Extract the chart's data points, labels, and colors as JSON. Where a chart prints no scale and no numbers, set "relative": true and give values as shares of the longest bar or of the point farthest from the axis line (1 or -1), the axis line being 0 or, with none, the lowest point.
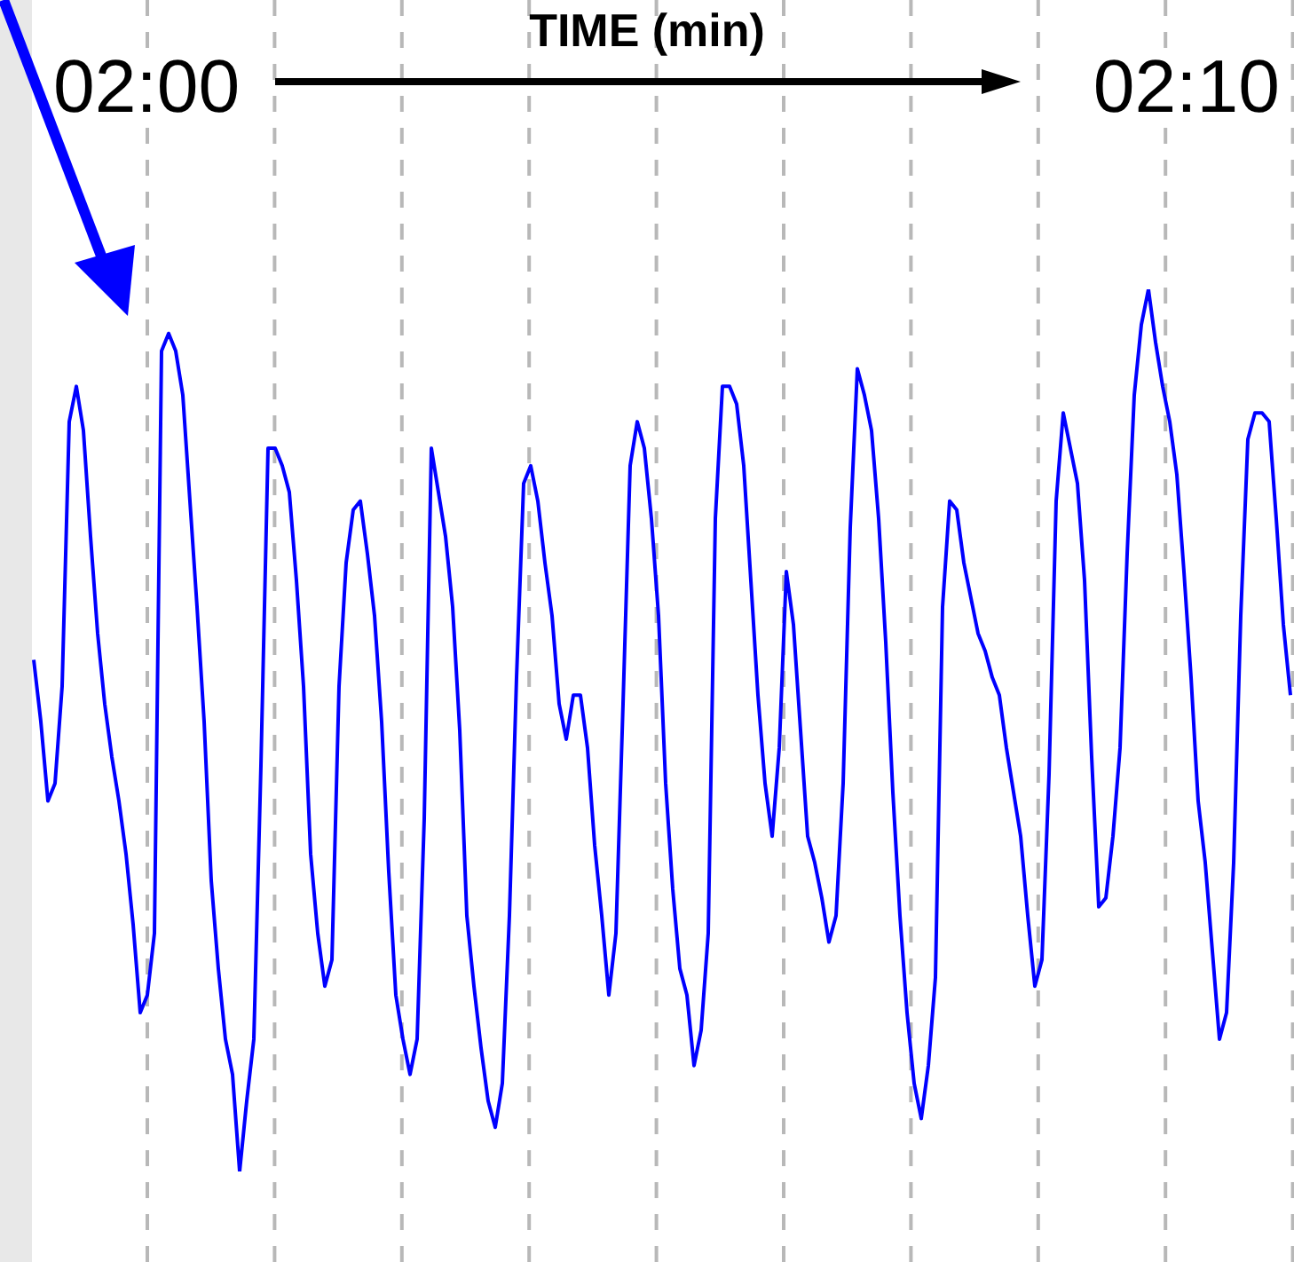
{
  "chart_data": {
    "type": "line",
    "title": "TIME (min)",
    "annotations": [
      "02:00",
      "02:10"
    ],
    "relative": true,
    "legend": false,
    "marker": "none",
    "line_style": "solid",
    "categories": [
      null,
      null,
      null,
      null,
      null,
      null,
      null,
      null,
      null,
      null,
      null,
      null,
      null,
      null,
      null,
      null,
      null,
      null,
      null,
      null,
      null,
      null,
      null,
      null,
      null,
      null,
      null,
      null,
      null,
      null,
      null,
      null,
      null,
      null,
      null,
      null,
      null,
      null,
      null,
      null,
      null,
      null,
      null,
      null,
      null,
      null,
      null,
      null,
      null,
      null,
      null,
      null,
      null,
      null,
      null,
      null,
      null,
      null,
      null,
      null,
      null,
      null,
      null,
      null,
      null,
      null,
      null,
      null,
      null,
      null,
      null,
      null,
      null,
      null,
      null,
      null,
      null,
      null,
      null,
      null,
      null,
      null,
      null,
      null,
      null,
      null,
      null,
      null,
      null,
      null,
      null,
      null,
      null,
      null,
      null,
      null,
      null,
      null,
      null,
      null,
      null,
      null,
      null,
      null,
      null,
      null,
      null,
      null,
      null,
      null,
      null,
      null,
      null,
      null,
      null,
      null,
      null,
      null,
      null,
      null,
      null,
      null,
      null,
      null,
      null,
      null,
      null,
      null,
      null,
      null,
      null,
      null,
      null,
      null,
      null,
      null,
      null,
      null,
      null,
      null,
      null,
      null,
      null,
      null,
      null,
      null,
      null,
      null,
      null,
      null,
      null,
      null,
      null,
      null,
      null,
      null,
      null,
      null,
      null,
      null,
      null,
      null,
      null,
      null,
      null,
      null,
      null,
      null,
      null,
      null,
      null,
      null,
      null,
      null,
      null,
      null,
      null,
      null
    ],
    "series": [
      {
        "color": "#0000ff",
        "values": [
          0.58,
          0.51,
          0.42,
          0.44,
          0.55,
          0.85,
          0.89,
          0.84,
          0.72,
          0.61,
          0.53,
          0.47,
          0.42,
          0.36,
          0.28,
          0.18,
          0.2,
          0.27,
          0.93,
          0.95,
          0.93,
          0.88,
          0.76,
          0.64,
          0.51,
          0.33,
          0.23,
          0.15,
          0.11,
          0,
          0.08,
          0.15,
          0.46,
          0.82,
          0.82,
          0.8,
          0.77,
          0.67,
          0.55,
          0.36,
          0.27,
          0.21,
          0.24,
          0.55,
          0.69,
          0.75,
          0.76,
          0.7,
          0.63,
          0.51,
          0.34,
          0.2,
          0.15,
          0.11,
          0.15,
          0.4,
          0.82,
          0.77,
          0.72,
          0.64,
          0.5,
          0.29,
          0.21,
          0.14,
          0.08,
          0.05,
          0.1,
          0.29,
          0.56,
          0.78,
          0.8,
          0.76,
          0.69,
          0.63,
          0.53,
          0.49,
          0.54,
          0.54,
          0.48,
          0.37,
          0.29,
          0.2,
          0.27,
          0.53,
          0.8,
          0.85,
          0.82,
          0.74,
          0.63,
          0.44,
          0.32,
          0.23,
          0.2,
          0.12,
          0.16,
          0.27,
          0.74,
          0.89,
          0.89,
          0.87,
          0.8,
          0.67,
          0.54,
          0.44,
          0.38,
          0.48,
          0.68,
          0.62,
          0.5,
          0.38,
          0.35,
          0.31,
          0.26,
          0.29,
          0.44,
          0.73,
          0.91,
          0.88,
          0.84,
          0.74,
          0.6,
          0.43,
          0.29,
          0.18,
          0.1,
          0.06,
          0.12,
          0.22,
          0.64,
          0.76,
          0.75,
          0.69,
          0.65,
          0.61,
          0.59,
          0.56,
          0.54,
          0.48,
          0.43,
          0.38,
          0.29,
          0.21,
          0.24,
          0.45,
          0.76,
          0.86,
          0.82,
          0.78,
          0.67,
          0.47,
          0.3,
          0.31,
          0.38,
          0.48,
          0.7,
          0.88,
          0.96,
          1,
          0.94,
          0.89,
          0.85,
          0.79,
          0.68,
          0.56,
          0.42,
          0.35,
          0.25,
          0.15,
          0.18,
          0.35,
          0.63,
          0.83,
          0.86,
          0.86,
          0.85,
          0.74,
          0.62,
          0.54
        ]
      }
    ]
  }
}
